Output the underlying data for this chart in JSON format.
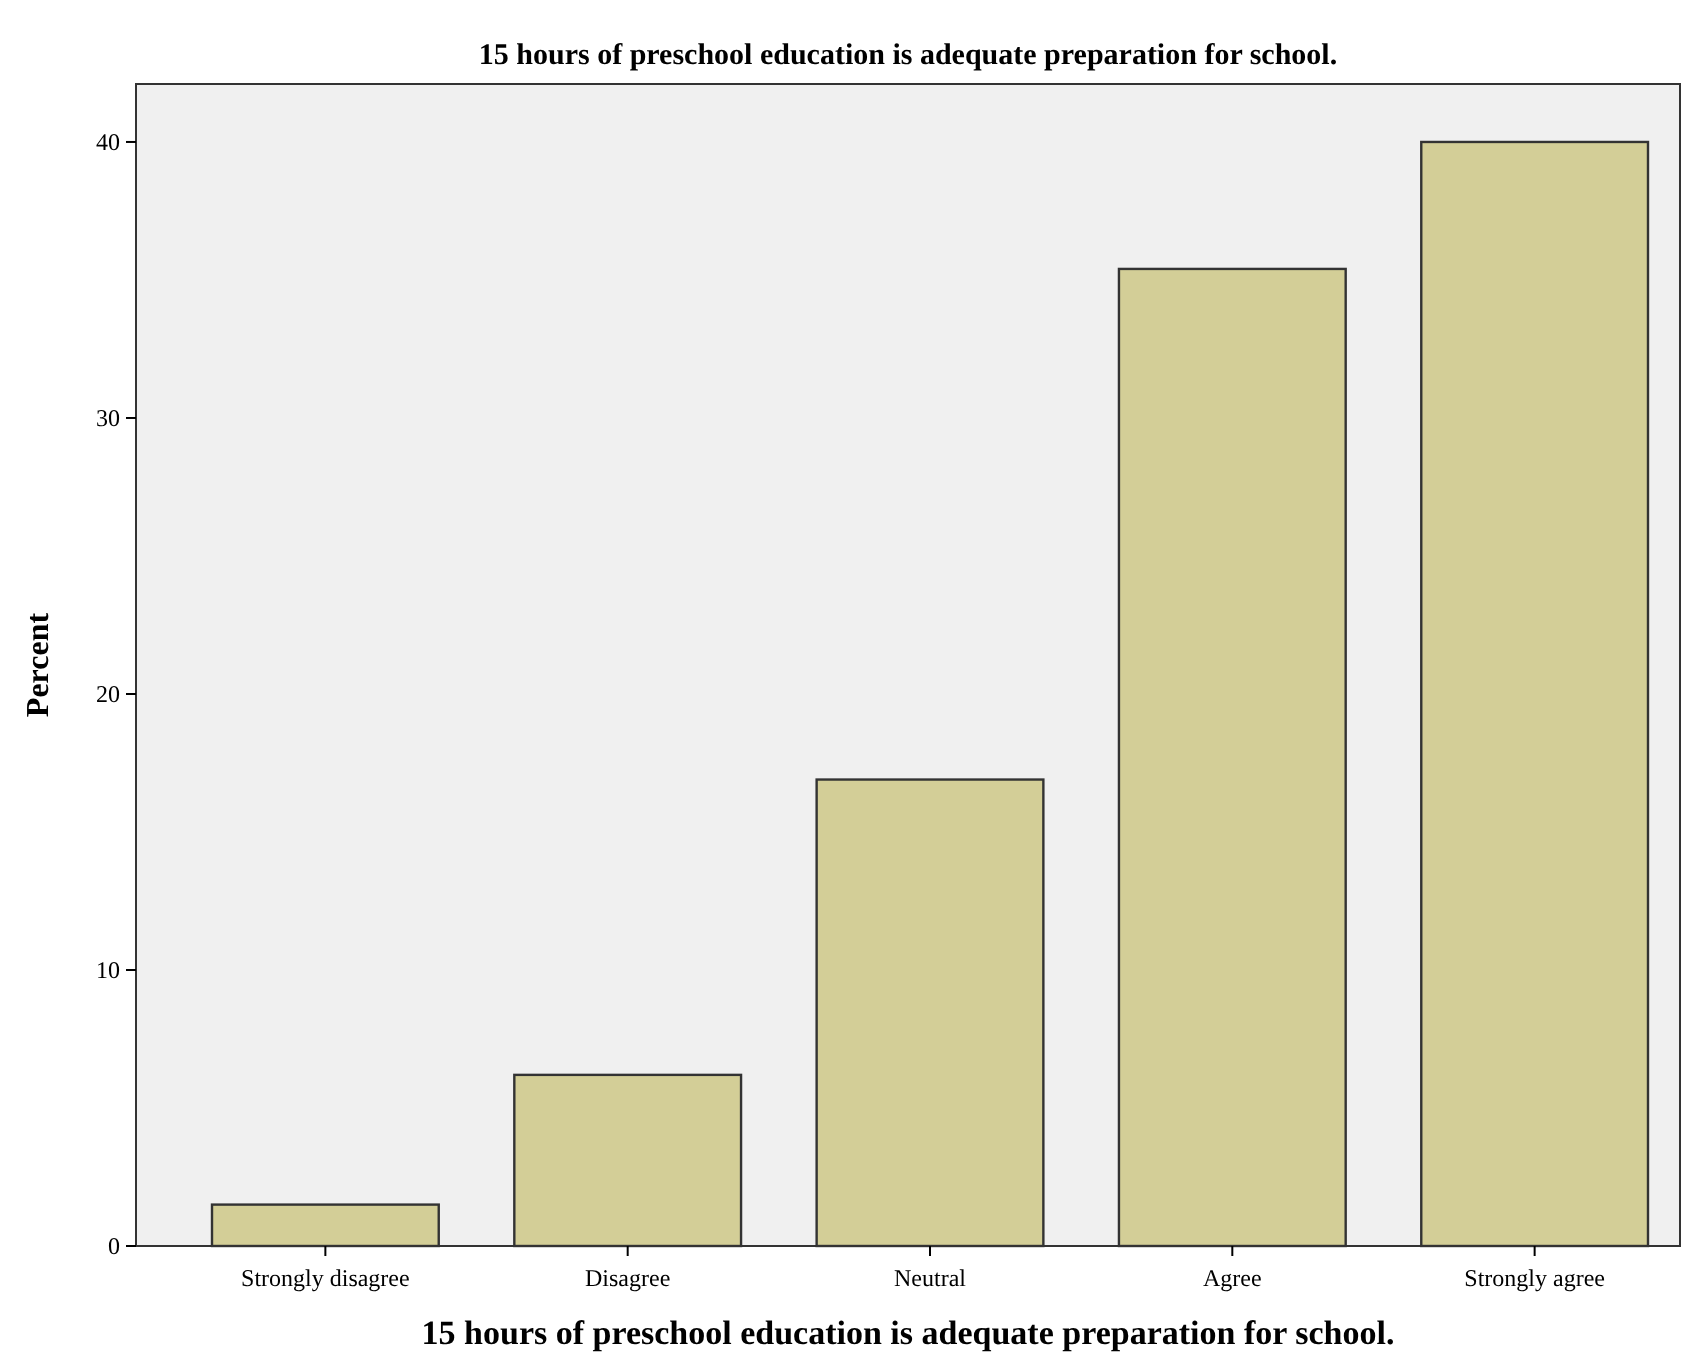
{
  "chart_data": {
    "type": "bar",
    "title": "15 hours of preschool education is adequate preparation for school.",
    "xlabel": "15 hours of preschool education is adequate preparation for school.",
    "ylabel": "Percent",
    "categories": [
      "Strongly disagree",
      "Disagree",
      "Neutral",
      "Agree",
      "Strongly agree"
    ],
    "values": [
      1.5,
      6.2,
      16.9,
      35.4,
      40.0
    ],
    "color": "#d3ce97",
    "ylim": [
      0,
      42.1
    ],
    "yticks": [
      0,
      10,
      20,
      30,
      40
    ],
    "grid": false
  }
}
